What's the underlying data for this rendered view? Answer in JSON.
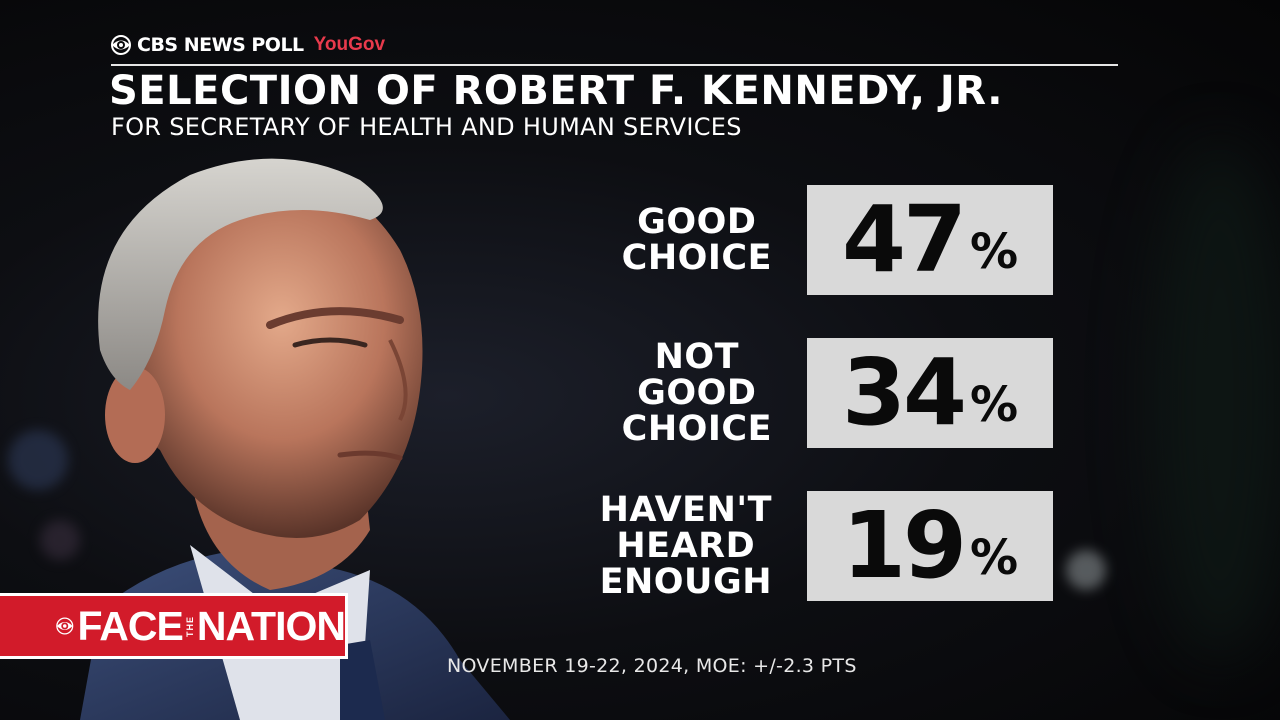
{
  "header": {
    "network": "CBS NEWS POLL",
    "partner": "YouGov",
    "title": "SELECTION OF ROBERT F. KENNEDY, JR.",
    "subtitle": "FOR SECRETARY OF HEALTH AND HUMAN SERVICES"
  },
  "chart_data": {
    "type": "table",
    "title": "SELECTION OF ROBERT F. KENNEDY, JR.",
    "subtitle": "FOR SECRETARY OF HEALTH AND HUMAN SERVICES",
    "categories": [
      [
        "GOOD",
        "CHOICE"
      ],
      [
        "NOT",
        "GOOD",
        "CHOICE"
      ],
      [
        "HAVEN'T",
        "HEARD",
        "ENOUGH"
      ]
    ],
    "values": [
      "47",
      "34",
      "19"
    ],
    "unit": "%"
  },
  "footnote": "NOVEMBER 19-22, 2024, MOE: +/-2.3 PTS",
  "show": {
    "brand_left": "FACE",
    "brand_the": "THE",
    "brand_right": "NATION"
  },
  "colors": {
    "accent_red": "#d21b2a",
    "yougov_red": "#e83a4c",
    "box_gray": "#d9d9d9"
  }
}
